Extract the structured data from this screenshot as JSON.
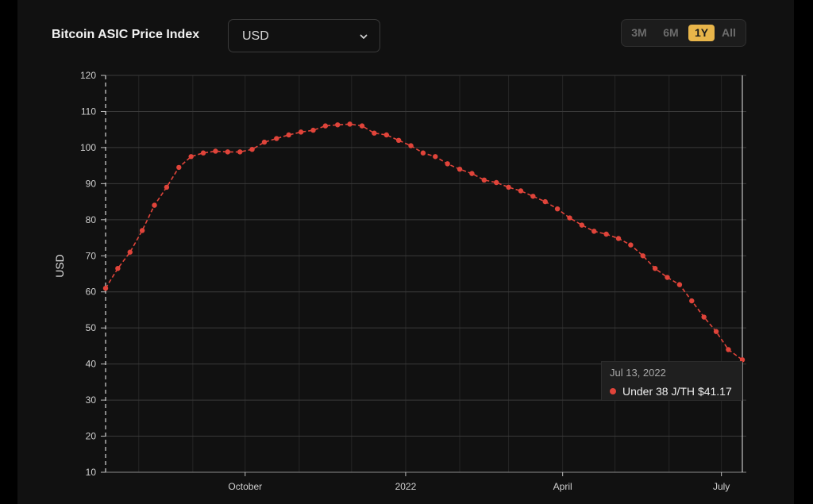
{
  "header": {
    "title": "Bitcoin ASIC Price Index",
    "currency_select": {
      "value": "USD"
    }
  },
  "range_buttons": [
    {
      "label": "3M",
      "active": false
    },
    {
      "label": "6M",
      "active": false
    },
    {
      "label": "1Y",
      "active": true
    },
    {
      "label": "All",
      "active": false
    }
  ],
  "tooltip": {
    "date": "Jul 13, 2022",
    "series": "Under 38 J/TH",
    "value": "$41.17",
    "dot_color": "#e0443a"
  },
  "chart_data": {
    "type": "line",
    "ylabel": "USD",
    "xlabel": "",
    "y_axis_ticks": [
      10,
      20,
      30,
      40,
      50,
      60,
      70,
      80,
      90,
      100,
      110,
      120
    ],
    "ylim": [
      10,
      120
    ],
    "x_axis_ticks": [
      "October",
      "2022",
      "April",
      "July"
    ],
    "grid": true,
    "line_color": "#e0443a",
    "series": [
      {
        "name": "Under 38 J/TH",
        "x": [
          "2021-07-13",
          "2021-07-20",
          "2021-07-27",
          "2021-08-03",
          "2021-08-10",
          "2021-08-17",
          "2021-08-24",
          "2021-08-31",
          "2021-09-07",
          "2021-09-14",
          "2021-09-21",
          "2021-09-28",
          "2021-10-05",
          "2021-10-12",
          "2021-10-19",
          "2021-10-26",
          "2021-11-02",
          "2021-11-09",
          "2021-11-16",
          "2021-11-23",
          "2021-11-30",
          "2021-12-07",
          "2021-12-14",
          "2021-12-21",
          "2021-12-28",
          "2022-01-04",
          "2022-01-11",
          "2022-01-18",
          "2022-01-25",
          "2022-02-01",
          "2022-02-08",
          "2022-02-15",
          "2022-02-22",
          "2022-03-01",
          "2022-03-08",
          "2022-03-15",
          "2022-03-22",
          "2022-03-29",
          "2022-04-05",
          "2022-04-12",
          "2022-04-19",
          "2022-04-26",
          "2022-05-03",
          "2022-05-10",
          "2022-05-17",
          "2022-05-24",
          "2022-05-31",
          "2022-06-07",
          "2022-06-14",
          "2022-06-21",
          "2022-06-28",
          "2022-07-05",
          "2022-07-13"
        ],
        "values": [
          61,
          66.5,
          71,
          77,
          84,
          89,
          94.5,
          97.5,
          98.5,
          99,
          98.8,
          98.8,
          99.5,
          101.5,
          102.5,
          103.5,
          104.3,
          104.8,
          106,
          106.3,
          106.5,
          106,
          104,
          103.5,
          102,
          100.5,
          98.5,
          97.5,
          95.5,
          94,
          92.8,
          91,
          90.3,
          89,
          88,
          86.5,
          85,
          83,
          80.5,
          78.5,
          76.8,
          76,
          74.8,
          73,
          70,
          66.5,
          64,
          62,
          57.5,
          53,
          49,
          44,
          41.17
        ]
      }
    ]
  }
}
